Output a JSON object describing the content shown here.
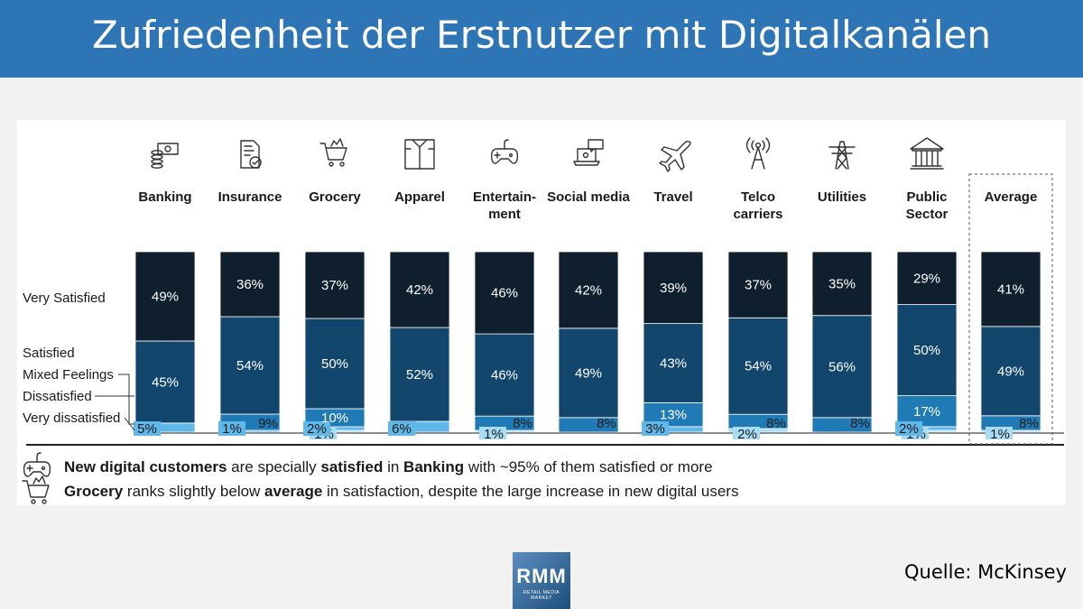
{
  "title": "Zufriedenheit der Erstnutzer mit Digitalkanälen",
  "source": "Quelle: McKinsey",
  "logo": {
    "big": "RMM",
    "small": "RETAIL MEDIA MARKET"
  },
  "legend": {
    "very_satisfied": "Very Satisfied",
    "satisfied": "Satisfied",
    "mixed": "Mixed Feelings",
    "dissatisfied": "Dissatisfied",
    "very_dissatisfied": "Very dissatisfied"
  },
  "colors": {
    "very_satisfied": "#0f1f2d",
    "satisfied": "#12466d",
    "mixed": "#1f7ab5",
    "dissatisfied": "#5fb8e8",
    "very_dissatisfied": "#a7dcf5"
  },
  "chart_data": {
    "type": "bar",
    "stacked": true,
    "categories": [
      {
        "label": [
          "Banking"
        ],
        "icon": "money-stack-icon"
      },
      {
        "label": [
          "Insurance"
        ],
        "icon": "policy-document-icon"
      },
      {
        "label": [
          "Grocery"
        ],
        "icon": "shopping-cart-icon"
      },
      {
        "label": [
          "Apparel"
        ],
        "icon": "shirt-icon"
      },
      {
        "label": [
          "Entertain-",
          "ment"
        ],
        "icon": "gamepad-icon"
      },
      {
        "label": [
          "Social media"
        ],
        "icon": "laptop-chat-icon"
      },
      {
        "label": [
          "Travel"
        ],
        "icon": "airplane-icon"
      },
      {
        "label": [
          "Telco",
          "carriers"
        ],
        "icon": "antenna-icon"
      },
      {
        "label": [
          "Utilities"
        ],
        "icon": "power-pylon-icon"
      },
      {
        "label": [
          "Public",
          "Sector"
        ],
        "icon": "government-building-icon"
      },
      {
        "label": [
          "Average"
        ],
        "icon": ""
      }
    ],
    "series": [
      {
        "name": "Very Satisfied",
        "values": [
          49,
          36,
          37,
          42,
          46,
          42,
          39,
          37,
          35,
          29,
          41
        ]
      },
      {
        "name": "Satisfied",
        "values": [
          45,
          54,
          50,
          52,
          46,
          49,
          43,
          54,
          56,
          50,
          49
        ]
      },
      {
        "name": "Mixed Feelings",
        "values": [
          null,
          9,
          10,
          null,
          8,
          8,
          13,
          8,
          8,
          17,
          8
        ]
      },
      {
        "name": "Dissatisfied",
        "values": [
          5,
          1,
          2,
          6,
          null,
          null,
          3,
          null,
          null,
          2,
          null
        ]
      },
      {
        "name": "Very dissatisfied",
        "values": [
          null,
          null,
          1,
          null,
          1,
          null,
          null,
          2,
          null,
          1,
          1
        ]
      }
    ],
    "highlight": "Average"
  },
  "notes": [
    {
      "icon": "gamepad-icon",
      "parts": [
        {
          "text": "New digital customers",
          "bold": true
        },
        {
          "text": " are specially ",
          "bold": false
        },
        {
          "text": "satisfied",
          "bold": true
        },
        {
          "text": " in ",
          "bold": false
        },
        {
          "text": "Banking",
          "bold": true
        },
        {
          "text": " with ~95% of them satisfied or more",
          "bold": false
        }
      ]
    },
    {
      "icon": "shopping-cart-icon",
      "parts": [
        {
          "text": "Grocery",
          "bold": true
        },
        {
          "text": " ranks slightly below ",
          "bold": false
        },
        {
          "text": "average",
          "bold": true
        },
        {
          "text": " in satisfaction, despite the large increase in new digital users",
          "bold": false
        }
      ]
    }
  ]
}
